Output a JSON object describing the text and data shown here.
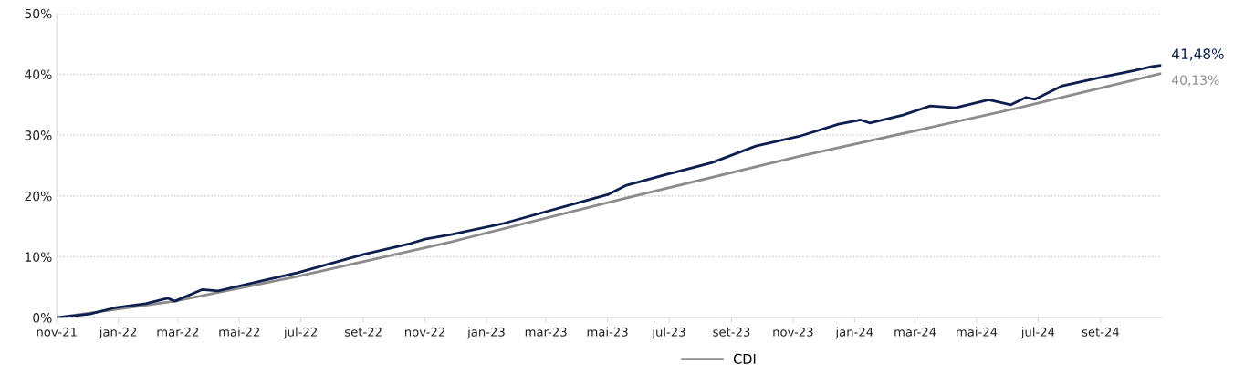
{
  "chart_data": {
    "type": "line",
    "series": [
      {
        "color": "#0c1f4f",
        "x": [
          "2021-11-01",
          "2021-12-04",
          "2021-12-28",
          "2022-01-28",
          "2022-02-19",
          "2022-02-26",
          "2022-03-25",
          "2022-04-10",
          "2022-05-25",
          "2022-06-28",
          "2022-09-01",
          "2022-10-16",
          "2022-11-01",
          "2022-11-28",
          "2023-01-16",
          "2023-04-13",
          "2023-05-01",
          "2023-05-19",
          "2023-06-28",
          "2023-08-13",
          "2023-09-25",
          "2023-11-07",
          "2023-12-16",
          "2024-01-07",
          "2024-01-16",
          "2024-02-18",
          "2024-03-16",
          "2024-04-10",
          "2024-05-13",
          "2024-06-04",
          "2024-06-19",
          "2024-06-28",
          "2024-07-25",
          "2024-09-04",
          "2024-10-04",
          "2024-10-22",
          "2024-10-31"
        ],
        "values": [
          0,
          0.6,
          1.6,
          2.3,
          3.2,
          2.7,
          4.6,
          4.4,
          6.1,
          7.4,
          10.4,
          12.1,
          12.9,
          13.7,
          15.4,
          19.4,
          20.2,
          21.7,
          23.5,
          25.5,
          28.2,
          29.8,
          31.8,
          32.5,
          32.0,
          33.3,
          34.8,
          34.5,
          35.8,
          35.0,
          36.2,
          35.9,
          38.1,
          39.6,
          40.6,
          41.3,
          41.48
        ],
        "value_labels": [
          null,
          null,
          null,
          null,
          null,
          null,
          null,
          null,
          null,
          null,
          null,
          null,
          null,
          null,
          null,
          null,
          null,
          null,
          null,
          null,
          null,
          null,
          null,
          null,
          null,
          null,
          null,
          null,
          null,
          null,
          null,
          null,
          null,
          null,
          null,
          null,
          "41,48%"
        ]
      },
      {
        "name": "CDI",
        "color": "#8c8c8c",
        "x": [
          "2021-11-01",
          "2022-02-26",
          "2022-06-28",
          "2022-11-28",
          "2023-05-13",
          "2023-11-07",
          "2024-06-07",
          "2024-10-31"
        ],
        "values": [
          0,
          2.7,
          6.8,
          12.5,
          19.4,
          26.5,
          34.3,
          40.13
        ],
        "value_labels": [
          null,
          null,
          null,
          null,
          null,
          null,
          null,
          "40,13%"
        ]
      }
    ],
    "xlim": [
      "2021-11-01",
      "2024-10-31"
    ],
    "xticks": [
      {
        "value": "2021-11-01",
        "label": "nov-21"
      },
      {
        "value": "2022-01-01",
        "label": "jan-22"
      },
      {
        "value": "2022-03-01",
        "label": "mar-22"
      },
      {
        "value": "2022-05-01",
        "label": "mai-22"
      },
      {
        "value": "2022-07-01",
        "label": "jul-22"
      },
      {
        "value": "2022-09-01",
        "label": "set-22"
      },
      {
        "value": "2022-11-01",
        "label": "nov-22"
      },
      {
        "value": "2023-01-01",
        "label": "jan-23"
      },
      {
        "value": "2023-03-01",
        "label": "mar-23"
      },
      {
        "value": "2023-05-01",
        "label": "mai-23"
      },
      {
        "value": "2023-07-01",
        "label": "jul-23"
      },
      {
        "value": "2023-09-01",
        "label": "set-23"
      },
      {
        "value": "2023-11-01",
        "label": "nov-23"
      },
      {
        "value": "2024-01-01",
        "label": "jan-24"
      },
      {
        "value": "2024-03-01",
        "label": "mar-24"
      },
      {
        "value": "2024-05-01",
        "label": "mai-24"
      },
      {
        "value": "2024-07-01",
        "label": "jul-24"
      },
      {
        "value": "2024-09-01",
        "label": "set-24"
      }
    ],
    "ylim": [
      0,
      50
    ],
    "yticks": [
      {
        "value": 0,
        "label": "0%"
      },
      {
        "value": 10,
        "label": "10%"
      },
      {
        "value": 20,
        "label": "20%"
      },
      {
        "value": 30,
        "label": "30%"
      },
      {
        "value": 40,
        "label": "40%"
      },
      {
        "value": 50,
        "label": "50%"
      }
    ],
    "grid": "y",
    "legend": "bottom",
    "marker": "none",
    "line_style": "solid"
  }
}
